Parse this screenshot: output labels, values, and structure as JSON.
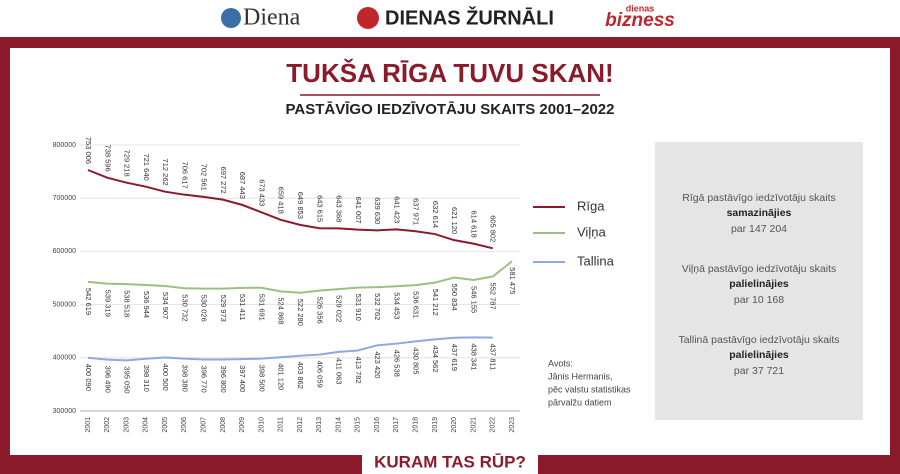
{
  "header": {
    "brands": [
      "Diena",
      "DIENAS ŽURNĀLI",
      "dienas",
      "bizness"
    ]
  },
  "chart_data": {
    "type": "line",
    "title": "TUKŠA RĪGA TUVU SKAN!",
    "subtitle": "PASTĀVĪGO IEDZĪVOTĀJU SKAITS 2001–2022",
    "categories": [
      "2001",
      "2002",
      "2003",
      "2004",
      "2005",
      "2006",
      "2007",
      "2008",
      "2009",
      "2010",
      "2011",
      "2012",
      "2013",
      "2014",
      "2015",
      "2016",
      "2017",
      "2018",
      "2019",
      "2020",
      "2021",
      "2022",
      "2023"
    ],
    "ylim": [
      300000,
      800000
    ],
    "yticks": [
      300000,
      400000,
      500000,
      600000,
      700000,
      800000
    ],
    "grid": true,
    "legend": "right",
    "series": [
      {
        "name": "Rīga",
        "color": "#8b1a2b",
        "values": [
          753006,
          738596,
          729218,
          721640,
          712262,
          706617,
          702561,
          697272,
          687443,
          673433,
          659418,
          649853,
          643615,
          643368,
          641007,
          639630,
          641423,
          637971,
          632614,
          621120,
          614618,
          605802,
          null
        ],
        "value_labels": [
          "753 006",
          "738 596",
          "729 218",
          "721 640",
          "712 262",
          "706 617",
          "702 561",
          "697 272",
          "687 443",
          "673 433",
          "659 418",
          "649 853",
          "643 615",
          "643 368",
          "641 007",
          "639 630",
          "641 423",
          "637 971",
          "632 614",
          "621 120",
          "614 618",
          "605 802",
          null
        ]
      },
      {
        "name": "Viļņa",
        "color": "#9cc084",
        "values": [
          542619,
          539319,
          538518,
          536944,
          534907,
          530732,
          530026,
          529973,
          531411,
          531691,
          524868,
          522280,
          526356,
          529022,
          531910,
          532762,
          534453,
          536631,
          541212,
          550834,
          546155,
          552787,
          581475
        ],
        "value_labels": [
          "542 619",
          "539 319",
          "538 518",
          "536 944",
          "534 907",
          "530 732",
          "530 026",
          "529 973",
          "531 411",
          "531 691",
          "524 868",
          "522 280",
          "526 356",
          "529 022",
          "531 910",
          "532 762",
          "534 453",
          "536 631",
          "541 212",
          "550 834",
          "546 155",
          "552 787",
          "581 475"
        ]
      },
      {
        "name": "Tallina",
        "color": "#8ea9dc",
        "values": [
          400090,
          396490,
          395050,
          398310,
          400500,
          398380,
          396770,
          396800,
          397400,
          398500,
          401120,
          403862,
          406059,
          411063,
          413782,
          423420,
          426538,
          430805,
          434562,
          437619,
          438341,
          437811,
          null
        ],
        "value_labels": [
          "400 090",
          "396 490",
          "395 050",
          "398 310",
          "400 500",
          "398 380",
          "396 770",
          "396 800",
          "397 400",
          "398 500",
          "401 120",
          "403 862",
          "406 059",
          "411 063",
          "413 782",
          "423 420",
          "426 538",
          "430 805",
          "434 562",
          "437 619",
          "438 341",
          "437 811",
          null
        ]
      }
    ],
    "source": [
      "Avots:",
      "Jānis Hermanis,",
      "pēc valstu statistikas",
      "pārvalžu datiem"
    ]
  },
  "info": [
    {
      "text": "Rīgā pastāvīgo iedzīvotāju skaits",
      "change": "samazinājies",
      "amount": "par 147 204"
    },
    {
      "text": "Viļņā pastāvīgo iedzīvotāju skaits",
      "change": "palielinājies",
      "amount": "par 10 168"
    },
    {
      "text": "Tallinā pastāvīgo iedzīvotāju skaits",
      "change": "palielinājies",
      "amount": "par 37 721"
    }
  ],
  "footer": "KURAM TAS RŪP?"
}
